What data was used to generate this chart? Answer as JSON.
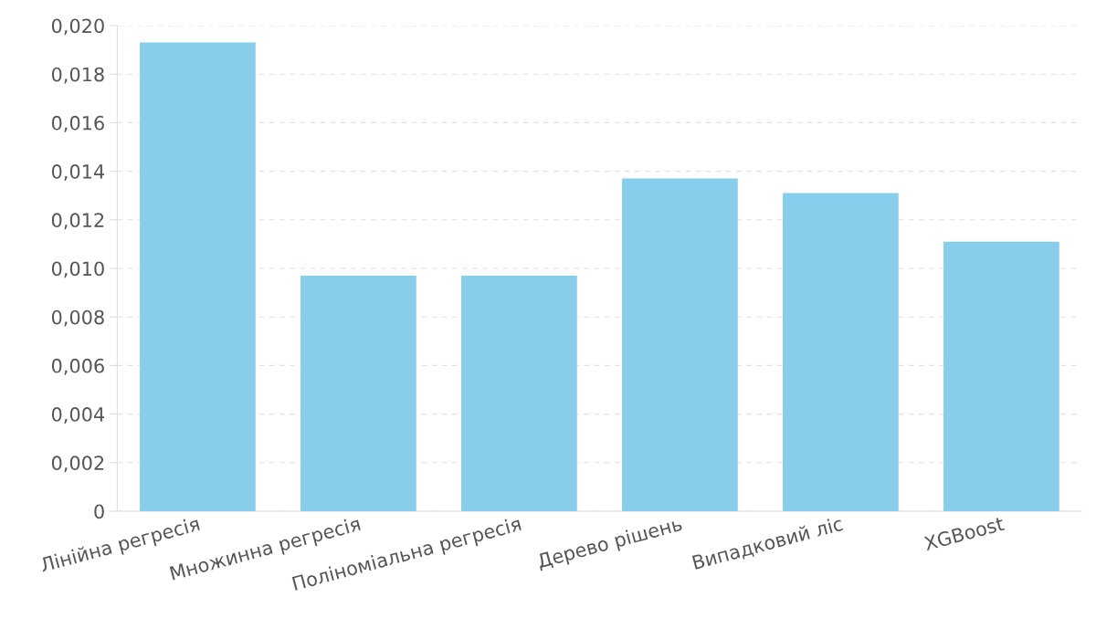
{
  "chart_data": {
    "type": "bar",
    "categories": [
      "Лінійна регресія",
      "Множинна регресія",
      "Поліноміальна регресія",
      "Дерево рішень",
      "Випадковий ліс",
      "XGBoost"
    ],
    "values": [
      0.0193,
      0.0097,
      0.0097,
      0.0137,
      0.0131,
      0.0111
    ],
    "color": "#87ceeb",
    "ylim": [
      0,
      0.02
    ],
    "yticks": [
      {
        "value": 0,
        "label": "0"
      },
      {
        "value": 0.002,
        "label": "0,002"
      },
      {
        "value": 0.004,
        "label": "0,004"
      },
      {
        "value": 0.006,
        "label": "0,006"
      },
      {
        "value": 0.008,
        "label": "0,008"
      },
      {
        "value": 0.01,
        "label": "0,010"
      },
      {
        "value": 0.012,
        "label": "0,012"
      },
      {
        "value": 0.014,
        "label": "0,014"
      },
      {
        "value": 0.016,
        "label": "0,016"
      },
      {
        "value": 0.018,
        "label": "0,018"
      },
      {
        "value": 0.02,
        "label": "0,020"
      }
    ],
    "grid": "y",
    "legend": false
  }
}
